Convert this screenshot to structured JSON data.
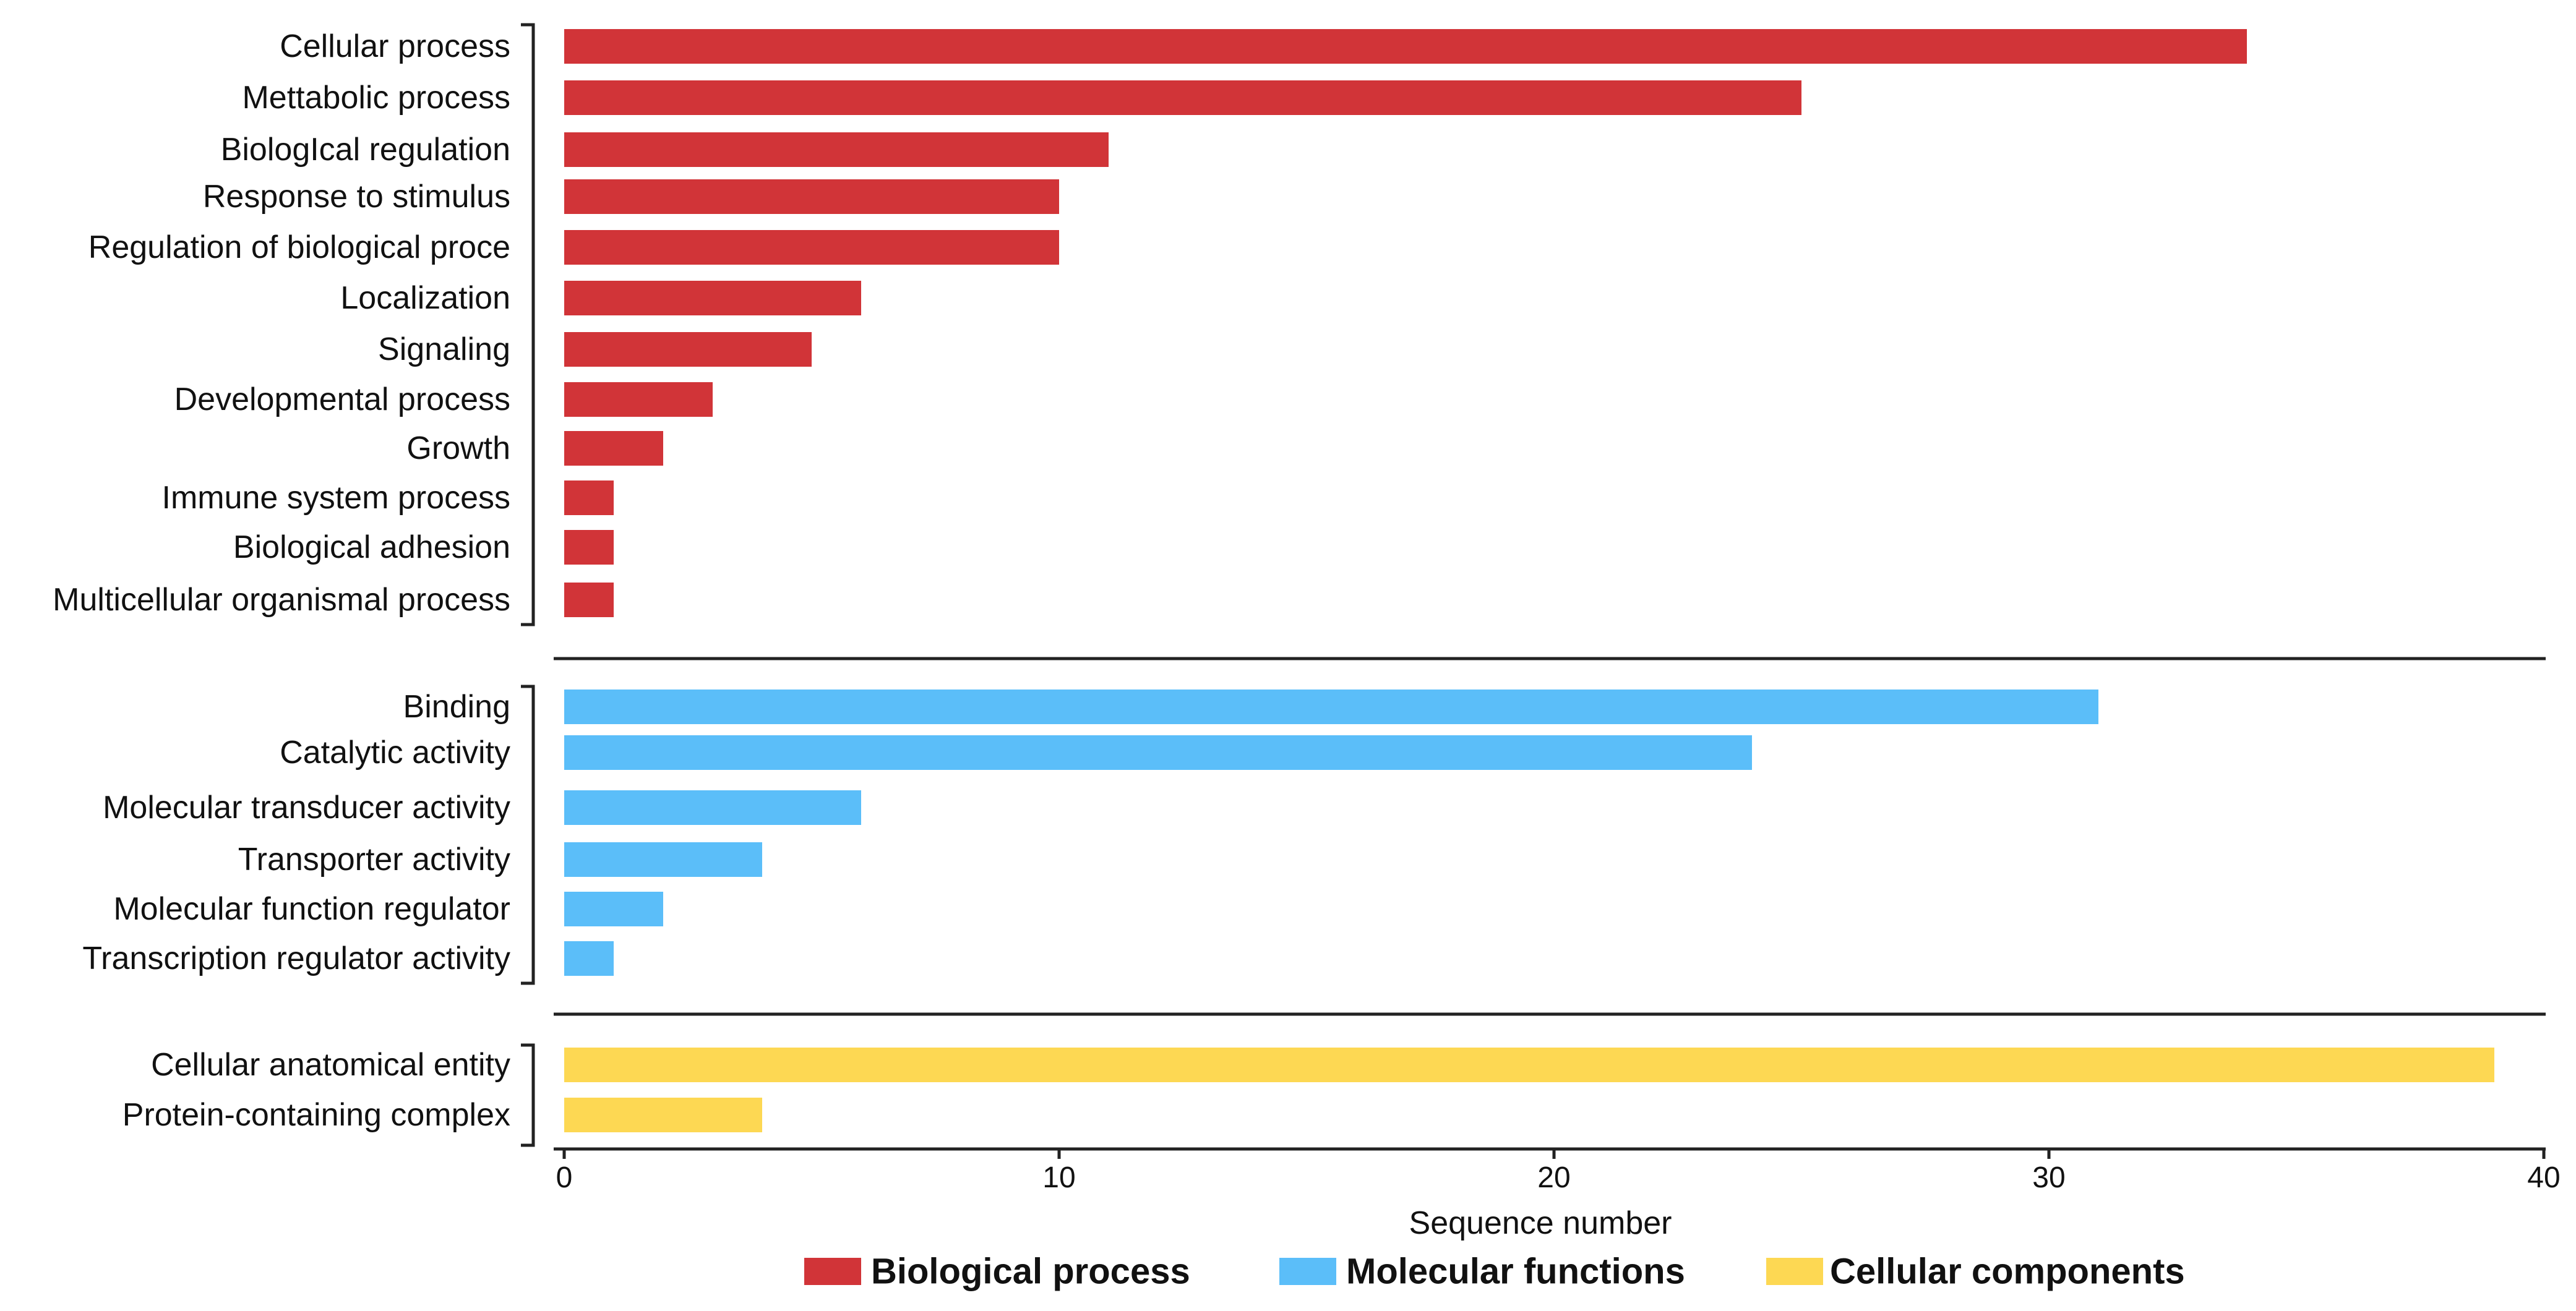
{
  "chart_data": {
    "type": "bar",
    "orientation": "horizontal",
    "title": "",
    "xlabel": "Sequence number",
    "ylabel": "",
    "xlim": [
      0,
      40
    ],
    "x_ticks": [
      "0",
      "10",
      "20",
      "30",
      "40"
    ],
    "grid": false,
    "legend_position": "bottom",
    "groups": [
      {
        "name": "Biological process",
        "color": "#d13438",
        "categories": [
          "Cellular process",
          "Mettabolic process",
          "BiologIcal regulation",
          "Response to stimulus",
          "Regulation of biological proce",
          "Localization",
          "Signaling",
          "Developmental process",
          "Growth",
          "Immune system process",
          "Biological adhesion",
          "Multicellular organismal process"
        ],
        "values": [
          34,
          25,
          11,
          10,
          10,
          6,
          5,
          3,
          2,
          1,
          1,
          1
        ]
      },
      {
        "name": "Molecular functions",
        "color": "#5bbef9",
        "categories": [
          "Binding",
          "Catalytic activity",
          "Molecular transducer activity",
          "Transporter activity",
          "Molecular function regulator",
          "Transcription regulator activity"
        ],
        "values": [
          31,
          24,
          6,
          4,
          2,
          1
        ]
      },
      {
        "name": "Cellular components",
        "color": "#fdd853",
        "categories": [
          "Cellular anatomical entity",
          "Protein-containing complex"
        ],
        "values": [
          39,
          4
        ]
      }
    ]
  }
}
